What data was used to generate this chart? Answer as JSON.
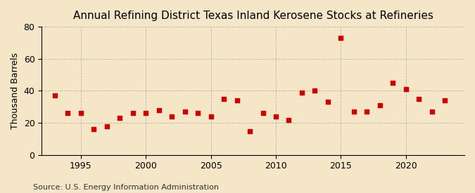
{
  "title": "Annual Refining District Texas Inland Kerosene Stocks at Refineries",
  "ylabel": "Thousand Barrels",
  "source": "Source: U.S. Energy Information Administration",
  "background_color": "#f5e6c8",
  "marker_color": "#cc0000",
  "years": [
    1993,
    1994,
    1995,
    1996,
    1997,
    1998,
    1999,
    2000,
    2001,
    2002,
    2003,
    2004,
    2005,
    2006,
    2007,
    2008,
    2009,
    2010,
    2011,
    2012,
    2013,
    2014,
    2015,
    2016,
    2017,
    2018,
    2019,
    2020,
    2021,
    2022,
    2023
  ],
  "values": [
    37,
    26,
    26,
    16,
    18,
    23,
    26,
    26,
    28,
    24,
    27,
    26,
    24,
    35,
    34,
    15,
    26,
    24,
    22,
    39,
    40,
    33,
    73,
    27,
    27,
    31,
    45,
    41,
    35,
    27,
    34
  ],
  "ylim": [
    0,
    80
  ],
  "yticks": [
    0,
    20,
    40,
    60,
    80
  ],
  "xticks": [
    1995,
    2000,
    2005,
    2010,
    2015,
    2020
  ],
  "xlim": [
    1992,
    2024.5
  ],
  "title_fontsize": 11,
  "label_fontsize": 9,
  "source_fontsize": 8
}
